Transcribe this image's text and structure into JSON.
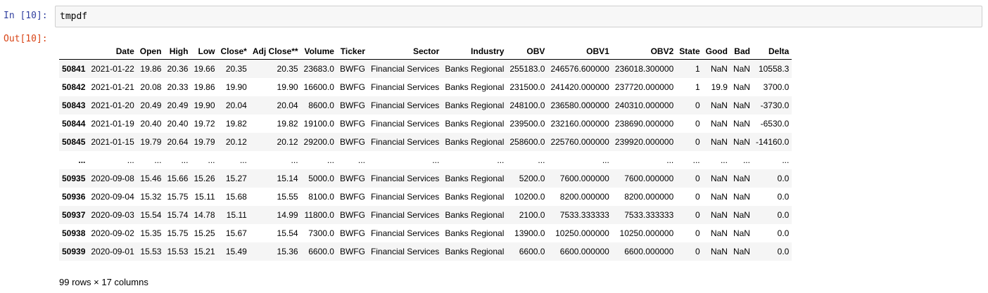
{
  "input_cell": {
    "prompt": "In [10]:",
    "code": "tmpdf"
  },
  "output_cell": {
    "prompt": "Out[10]:"
  },
  "table": {
    "columns": [
      "",
      "Date",
      "Open",
      "High",
      "Low",
      "Close*",
      "Adj Close**",
      "Volume",
      "Ticker",
      "Sector",
      "Industry",
      "OBV",
      "OBV1",
      "OBV2",
      "State",
      "Good",
      "Bad",
      "Delta"
    ],
    "rows": [
      [
        "50841",
        "2021-01-22",
        "19.86",
        "20.36",
        "19.66",
        "20.35",
        "20.35",
        "23683.0",
        "BWFG",
        "Financial Services",
        "Banks Regional",
        "255183.0",
        "246576.600000",
        "236018.300000",
        "1",
        "NaN",
        "NaN",
        "10558.3"
      ],
      [
        "50842",
        "2021-01-21",
        "20.08",
        "20.33",
        "19.86",
        "19.90",
        "19.90",
        "16600.0",
        "BWFG",
        "Financial Services",
        "Banks Regional",
        "231500.0",
        "241420.000000",
        "237720.000000",
        "1",
        "19.9",
        "NaN",
        "3700.0"
      ],
      [
        "50843",
        "2021-01-20",
        "20.49",
        "20.49",
        "19.90",
        "20.04",
        "20.04",
        "8600.0",
        "BWFG",
        "Financial Services",
        "Banks Regional",
        "248100.0",
        "236580.000000",
        "240310.000000",
        "0",
        "NaN",
        "NaN",
        "-3730.0"
      ],
      [
        "50844",
        "2021-01-19",
        "20.40",
        "20.40",
        "19.72",
        "19.82",
        "19.82",
        "19100.0",
        "BWFG",
        "Financial Services",
        "Banks Regional",
        "239500.0",
        "232160.000000",
        "238690.000000",
        "0",
        "NaN",
        "NaN",
        "-6530.0"
      ],
      [
        "50845",
        "2021-01-15",
        "19.79",
        "20.64",
        "19.79",
        "20.12",
        "20.12",
        "29200.0",
        "BWFG",
        "Financial Services",
        "Banks Regional",
        "258600.0",
        "225760.000000",
        "239920.000000",
        "0",
        "NaN",
        "NaN",
        "-14160.0"
      ],
      [
        "...",
        "...",
        "...",
        "...",
        "...",
        "...",
        "...",
        "...",
        "...",
        "...",
        "...",
        "...",
        "...",
        "...",
        "...",
        "...",
        "...",
        "..."
      ],
      [
        "50935",
        "2020-09-08",
        "15.46",
        "15.66",
        "15.26",
        "15.27",
        "15.14",
        "5000.0",
        "BWFG",
        "Financial Services",
        "Banks Regional",
        "5200.0",
        "7600.000000",
        "7600.000000",
        "0",
        "NaN",
        "NaN",
        "0.0"
      ],
      [
        "50936",
        "2020-09-04",
        "15.32",
        "15.75",
        "15.11",
        "15.68",
        "15.55",
        "8100.0",
        "BWFG",
        "Financial Services",
        "Banks Regional",
        "10200.0",
        "8200.000000",
        "8200.000000",
        "0",
        "NaN",
        "NaN",
        "0.0"
      ],
      [
        "50937",
        "2020-09-03",
        "15.54",
        "15.74",
        "14.78",
        "15.11",
        "14.99",
        "11800.0",
        "BWFG",
        "Financial Services",
        "Banks Regional",
        "2100.0",
        "7533.333333",
        "7533.333333",
        "0",
        "NaN",
        "NaN",
        "0.0"
      ],
      [
        "50938",
        "2020-09-02",
        "15.35",
        "15.75",
        "15.25",
        "15.67",
        "15.54",
        "7300.0",
        "BWFG",
        "Financial Services",
        "Banks Regional",
        "13900.0",
        "10250.000000",
        "10250.000000",
        "0",
        "NaN",
        "NaN",
        "0.0"
      ],
      [
        "50939",
        "2020-09-01",
        "15.53",
        "15.53",
        "15.21",
        "15.49",
        "15.36",
        "6600.0",
        "BWFG",
        "Financial Services",
        "Banks Regional",
        "6600.0",
        "6600.000000",
        "6600.000000",
        "0",
        "NaN",
        "NaN",
        "0.0"
      ]
    ]
  },
  "summary": "99 rows × 17 columns",
  "colors": {
    "in_prompt": "#303f9f",
    "out_prompt": "#d84315",
    "code_bg": "#f7f7f7",
    "stripe": "#f5f5f5"
  }
}
